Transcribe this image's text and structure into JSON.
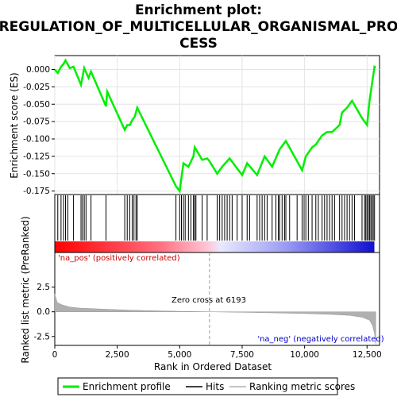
{
  "title_line1": "Enrichment plot:",
  "title_line2": "REGULATION_OF_MULTICELLULAR_ORGANISMAL_PRO",
  "title_line3": "CESS",
  "ylabel_top": "Enrichment score (ES)",
  "ylabel_bottom": "Ranked list metric (PreRanked)",
  "xlabel": "Rank in Ordered Dataset",
  "pos_label": "'na_pos' (positively correlated)",
  "neg_label": "'na_neg' (negatively correlated)",
  "zero_label": "Zero cross at 6193",
  "legend": {
    "enrichment": "Enrichment profile",
    "hits": "Hits",
    "ranking": "Ranking metric scores"
  },
  "colors": {
    "enrichment_line": "#00ee00",
    "hits": "#000000",
    "ranking_fill": "#b0b0b0",
    "pos_text": "#cc0000",
    "neg_text": "#0000cc"
  },
  "chart_data": {
    "type": "line",
    "x_range": [
      0,
      13000
    ],
    "zero_cross": 6193,
    "es_ylim": [
      -0.18,
      0.02
    ],
    "es_yticks": [
      0.0,
      -0.025,
      -0.05,
      -0.075,
      -0.1,
      -0.125,
      -0.15,
      -0.175
    ],
    "es_yticklabels": [
      "0.000",
      "-0.025",
      "-0.050",
      "-0.075",
      "-0.100",
      "-0.125",
      "-0.150",
      "-0.175"
    ],
    "xticks": [
      0,
      2500,
      5000,
      7500,
      10000,
      12500
    ],
    "xticklabels": [
      "0",
      "2,500",
      "5,000",
      "7,500",
      "10,000",
      "12,500"
    ],
    "metric_ylim": [
      -3.4,
      6.0
    ],
    "metric_yticks": [
      2.5,
      0.0,
      -2.5
    ],
    "metric_yticklabels": [
      "2.5",
      "0.0",
      "-2.5"
    ],
    "es_profile": [
      [
        0,
        0.0
      ],
      [
        120,
        -0.005
      ],
      [
        250,
        0.004
      ],
      [
        350,
        0.008
      ],
      [
        430,
        0.013
      ],
      [
        600,
        0.002
      ],
      [
        750,
        0.004
      ],
      [
        1050,
        -0.022
      ],
      [
        1180,
        0.002
      ],
      [
        1350,
        -0.012
      ],
      [
        1450,
        -0.003
      ],
      [
        2050,
        -0.053
      ],
      [
        2100,
        -0.032
      ],
      [
        2800,
        -0.087
      ],
      [
        2900,
        -0.08
      ],
      [
        3000,
        -0.08
      ],
      [
        3100,
        -0.073
      ],
      [
        3200,
        -0.068
      ],
      [
        3300,
        -0.055
      ],
      [
        4850,
        -0.168
      ],
      [
        5000,
        -0.175
      ],
      [
        5150,
        -0.135
      ],
      [
        5350,
        -0.14
      ],
      [
        5550,
        -0.125
      ],
      [
        5600,
        -0.112
      ],
      [
        5900,
        -0.13
      ],
      [
        6100,
        -0.128
      ],
      [
        6193,
        -0.132
      ],
      [
        6500,
        -0.15
      ],
      [
        6700,
        -0.14
      ],
      [
        7000,
        -0.128
      ],
      [
        7500,
        -0.152
      ],
      [
        7700,
        -0.135
      ],
      [
        8100,
        -0.152
      ],
      [
        8400,
        -0.125
      ],
      [
        8700,
        -0.14
      ],
      [
        9000,
        -0.115
      ],
      [
        9250,
        -0.103
      ],
      [
        9700,
        -0.132
      ],
      [
        9900,
        -0.145
      ],
      [
        10050,
        -0.125
      ],
      [
        10300,
        -0.112
      ],
      [
        10450,
        -0.108
      ],
      [
        10700,
        -0.095
      ],
      [
        10900,
        -0.09
      ],
      [
        11100,
        -0.09
      ],
      [
        11400,
        -0.08
      ],
      [
        11500,
        -0.062
      ],
      [
        11700,
        -0.055
      ],
      [
        11900,
        -0.045
      ],
      [
        12300,
        -0.07
      ],
      [
        12500,
        -0.08
      ],
      [
        12600,
        -0.045
      ],
      [
        12700,
        -0.02
      ],
      [
        12800,
        0.004
      ],
      [
        12850,
        0.003
      ]
    ],
    "hits": [
      120,
      250,
      350,
      430,
      520,
      750,
      1050,
      1110,
      1180,
      1250,
      1450,
      2050,
      2800,
      2900,
      3000,
      3100,
      3170,
      3250,
      3300,
      4850,
      5000,
      5070,
      5150,
      5220,
      5350,
      5450,
      5550,
      5600,
      5650,
      5900,
      6100,
      6500,
      6600,
      6700,
      6800,
      6900,
      7000,
      7100,
      7300,
      7500,
      7700,
      7800,
      8100,
      8200,
      8300,
      8400,
      8500,
      8700,
      8850,
      8950,
      9000,
      9100,
      9200,
      9250,
      9400,
      9700,
      9900,
      9980,
      10050,
      10150,
      10300,
      10450,
      10550,
      10700,
      10800,
      10900,
      11000,
      11100,
      11200,
      11400,
      11500,
      11600,
      11700,
      11800,
      11900,
      12000,
      12300,
      12400,
      12450,
      12500,
      12550,
      12600,
      12650,
      12700,
      12750,
      12800
    ],
    "metric_profile": [
      [
        0,
        1.8
      ],
      [
        100,
        0.95
      ],
      [
        300,
        0.7
      ],
      [
        600,
        0.48
      ],
      [
        1000,
        0.38
      ],
      [
        2000,
        0.26
      ],
      [
        3000,
        0.17
      ],
      [
        4000,
        0.1
      ],
      [
        5000,
        0.05
      ],
      [
        6193,
        0.0
      ],
      [
        7000,
        -0.03
      ],
      [
        8000,
        -0.07
      ],
      [
        9000,
        -0.12
      ],
      [
        10000,
        -0.18
      ],
      [
        11000,
        -0.26
      ],
      [
        11800,
        -0.36
      ],
      [
        12300,
        -0.55
      ],
      [
        12600,
        -0.85
      ],
      [
        12720,
        -1.4
      ],
      [
        12800,
        -2.2
      ],
      [
        12850,
        -3.3
      ]
    ]
  }
}
